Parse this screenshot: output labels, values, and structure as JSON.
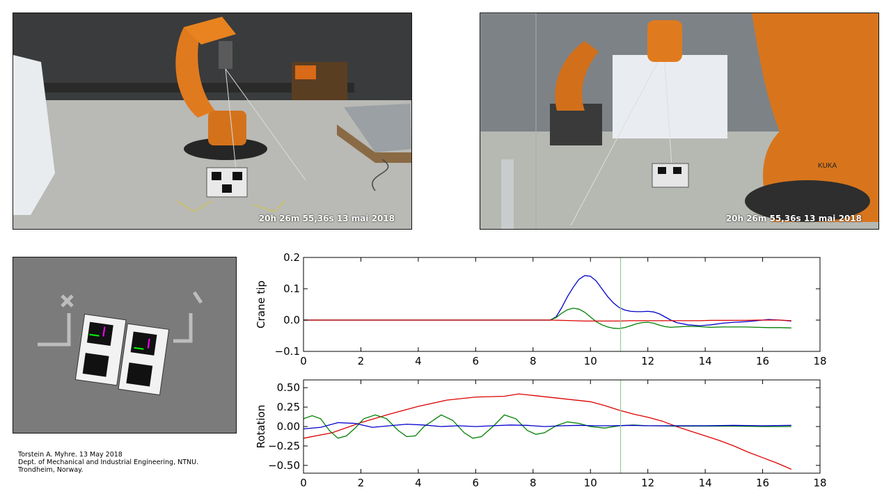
{
  "cameras": {
    "left_timestamp": "20h 26m 55,36s 13 mai 2018",
    "right_timestamp": "20h 26m 55,36s 13 mai 2018",
    "robot_brand": "KUKA"
  },
  "credits": [
    "Torstein A. Myhre. 13 May 2018",
    "Dept. of Mechanical and Industrial Engineering, NTNU.",
    "Trondheim, Norway."
  ],
  "colors": {
    "blue": "#0000cc",
    "green": "#007f00",
    "red": "#dd0000",
    "marker": "#8fd18f"
  },
  "chart_data": [
    {
      "type": "line",
      "ylabel": "Crane tip",
      "xlim": [
        0,
        18
      ],
      "ylim": [
        -0.1,
        0.2
      ],
      "xticks": [
        "0",
        "2",
        "4",
        "6",
        "8",
        "10",
        "12",
        "14",
        "16",
        "18"
      ],
      "yticks": [
        "−0.1",
        "0.0",
        "0.1",
        "0.2"
      ],
      "ytick_values": [
        -0.1,
        0.0,
        0.1,
        0.2
      ],
      "marker_x": 11.05,
      "series": [
        {
          "color": "blue",
          "x": [
            0,
            8.6,
            8.8,
            9.0,
            9.2,
            9.4,
            9.6,
            9.8,
            10.0,
            10.2,
            10.4,
            10.6,
            10.8,
            11.0,
            11.2,
            11.4,
            11.6,
            11.8,
            12.0,
            12.2,
            12.4,
            12.6,
            12.8,
            13.0,
            13.4,
            13.8,
            14.2,
            14.6,
            15.0,
            15.4,
            15.8,
            16.2,
            16.6,
            17.0
          ],
          "y": [
            0,
            0,
            0.01,
            0.04,
            0.075,
            0.105,
            0.13,
            0.142,
            0.14,
            0.125,
            0.1,
            0.075,
            0.055,
            0.04,
            0.032,
            0.028,
            0.027,
            0.027,
            0.028,
            0.026,
            0.02,
            0.01,
            0.0,
            -0.008,
            -0.015,
            -0.018,
            -0.015,
            -0.01,
            -0.007,
            -0.005,
            -0.002,
            0.002,
            0.0,
            -0.003
          ]
        },
        {
          "color": "green",
          "x": [
            0,
            8.6,
            8.8,
            9.0,
            9.2,
            9.4,
            9.6,
            9.8,
            10.0,
            10.2,
            10.4,
            10.6,
            10.8,
            11.0,
            11.2,
            11.4,
            11.6,
            11.8,
            12.0,
            12.2,
            12.4,
            12.6,
            12.8,
            13.0,
            13.4,
            13.8,
            14.2,
            14.6,
            15.0,
            15.4,
            15.8,
            16.2,
            16.6,
            17.0
          ],
          "y": [
            0,
            0,
            0.008,
            0.022,
            0.033,
            0.038,
            0.035,
            0.025,
            0.01,
            -0.005,
            -0.015,
            -0.022,
            -0.026,
            -0.027,
            -0.024,
            -0.018,
            -0.012,
            -0.008,
            -0.007,
            -0.01,
            -0.016,
            -0.021,
            -0.023,
            -0.022,
            -0.02,
            -0.021,
            -0.023,
            -0.022,
            -0.022,
            -0.022,
            -0.023,
            -0.024,
            -0.024,
            -0.025
          ]
        },
        {
          "color": "red",
          "x": [
            0,
            8.6,
            9.0,
            9.4,
            9.8,
            10.2,
            10.6,
            11.0,
            11.4,
            11.8,
            12.2,
            12.6,
            13.0,
            13.4,
            13.8,
            14.2,
            14.6,
            15.0,
            15.4,
            15.8,
            16.2,
            16.6,
            17.0
          ],
          "y": [
            0,
            0,
            -0.001,
            -0.002,
            -0.003,
            -0.003,
            -0.003,
            -0.003,
            -0.002,
            -0.002,
            -0.002,
            -0.002,
            -0.002,
            -0.002,
            -0.002,
            -0.001,
            -0.001,
            -0.001,
            -0.001,
            0.0,
            0.0,
            0.0,
            -0.002
          ]
        }
      ]
    },
    {
      "type": "line",
      "ylabel": "Rotation",
      "xlim": [
        0,
        18
      ],
      "ylim": [
        -0.6,
        0.6
      ],
      "xticks": [
        "0",
        "2",
        "4",
        "6",
        "8",
        "10",
        "12",
        "14",
        "16",
        "18"
      ],
      "yticks": [
        "−0.50",
        "−0.25",
        "0.00",
        "0.25",
        "0.50"
      ],
      "ytick_values": [
        -0.5,
        -0.25,
        0.0,
        0.25,
        0.5
      ],
      "marker_x": 11.05,
      "series": [
        {
          "color": "red",
          "x": [
            0,
            1,
            2,
            3,
            4,
            5,
            6,
            7,
            7.5,
            8,
            9,
            10,
            10.5,
            11,
            11.5,
            12,
            12.5,
            13,
            13.5,
            14,
            14.5,
            15,
            15.5,
            16,
            16.5,
            17
          ],
          "y": [
            -0.15,
            -0.08,
            0.05,
            0.16,
            0.26,
            0.34,
            0.38,
            0.39,
            0.42,
            0.4,
            0.36,
            0.32,
            0.27,
            0.21,
            0.16,
            0.12,
            0.07,
            0.0,
            -0.06,
            -0.12,
            -0.18,
            -0.25,
            -0.33,
            -0.4,
            -0.47,
            -0.55
          ]
        },
        {
          "color": "green",
          "x": [
            0,
            0.3,
            0.6,
            0.9,
            1.2,
            1.5,
            1.8,
            2.1,
            2.5,
            2.9,
            3.3,
            3.6,
            3.9,
            4.2,
            4.8,
            5.2,
            5.6,
            5.9,
            6.2,
            6.6,
            7.0,
            7.4,
            7.8,
            8.1,
            8.4,
            8.8,
            9.2,
            9.6,
            10.0,
            10.5,
            11.0,
            11.5,
            12.0,
            13.0,
            14.0,
            15.0,
            16.0,
            17.0
          ],
          "y": [
            0.1,
            0.14,
            0.1,
            -0.05,
            -0.15,
            -0.12,
            -0.02,
            0.1,
            0.15,
            0.1,
            -0.05,
            -0.13,
            -0.12,
            0.0,
            0.15,
            0.08,
            -0.08,
            -0.15,
            -0.13,
            0.0,
            0.15,
            0.1,
            -0.05,
            -0.1,
            -0.08,
            0.01,
            0.06,
            0.04,
            0.0,
            -0.02,
            0.01,
            0.02,
            0.01,
            0.005,
            0.005,
            0.005,
            0.0,
            0.0
          ]
        },
        {
          "color": "blue",
          "x": [
            0,
            0.6,
            1.2,
            1.8,
            2.4,
            3.0,
            3.6,
            4.2,
            4.8,
            5.4,
            6.0,
            6.6,
            7.2,
            7.8,
            8.4,
            9.0,
            9.6,
            10.2,
            10.8,
            11.4,
            12.0,
            13.0,
            14.0,
            15.0,
            16.0,
            17.0
          ],
          "y": [
            -0.03,
            -0.01,
            0.05,
            0.04,
            -0.01,
            0.01,
            0.03,
            0.02,
            0.0,
            0.01,
            0.0,
            0.01,
            0.02,
            0.015,
            0.0,
            0.01,
            0.015,
            0.01,
            0.01,
            0.015,
            0.01,
            0.01,
            0.01,
            0.015,
            0.01,
            0.015
          ]
        }
      ]
    }
  ]
}
